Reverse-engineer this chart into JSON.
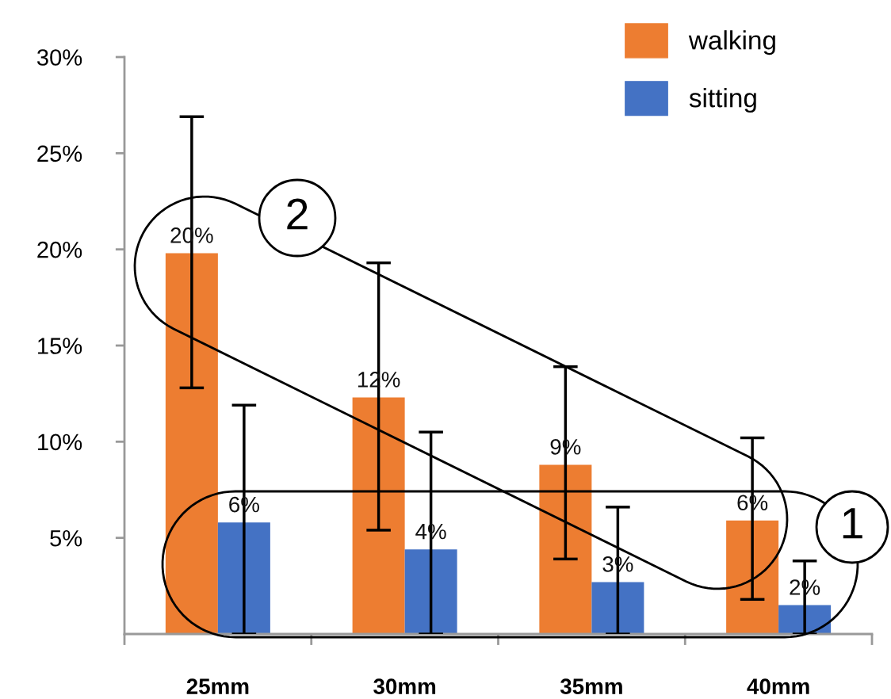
{
  "chart_data": {
    "type": "bar",
    "categories": [
      "25mm",
      "30mm",
      "35mm",
      "40mm"
    ],
    "series": [
      {
        "name": "walking",
        "color": "#ed7d31",
        "values": [
          19.8,
          12.3,
          8.8,
          5.9
        ],
        "value_labels": [
          "20%",
          "12%",
          "9%",
          "6%"
        ],
        "errors": [
          [
            12.8,
            26.9
          ],
          [
            5.4,
            19.3
          ],
          [
            3.9,
            13.9
          ],
          [
            1.8,
            10.2
          ]
        ]
      },
      {
        "name": "sitting",
        "color": "#4472c4",
        "values": [
          5.8,
          4.4,
          2.7,
          1.5
        ],
        "value_labels": [
          "6%",
          "4%",
          "3%",
          "2%"
        ],
        "errors": [
          [
            0,
            11.9
          ],
          [
            0,
            10.5
          ],
          [
            0,
            6.6
          ],
          [
            0,
            3.8
          ]
        ]
      }
    ],
    "ylim": [
      0,
      30
    ],
    "yticks": [
      {
        "value": 5,
        "label": "5%"
      },
      {
        "value": 10,
        "label": "10%"
      },
      {
        "value": 15,
        "label": "15%"
      },
      {
        "value": 20,
        "label": "20%"
      },
      {
        "value": 25,
        "label": "25%"
      },
      {
        "value": 30,
        "label": "30%"
      }
    ],
    "annotations": [
      "1",
      "2"
    ],
    "legend": "top right",
    "grid": false
  }
}
